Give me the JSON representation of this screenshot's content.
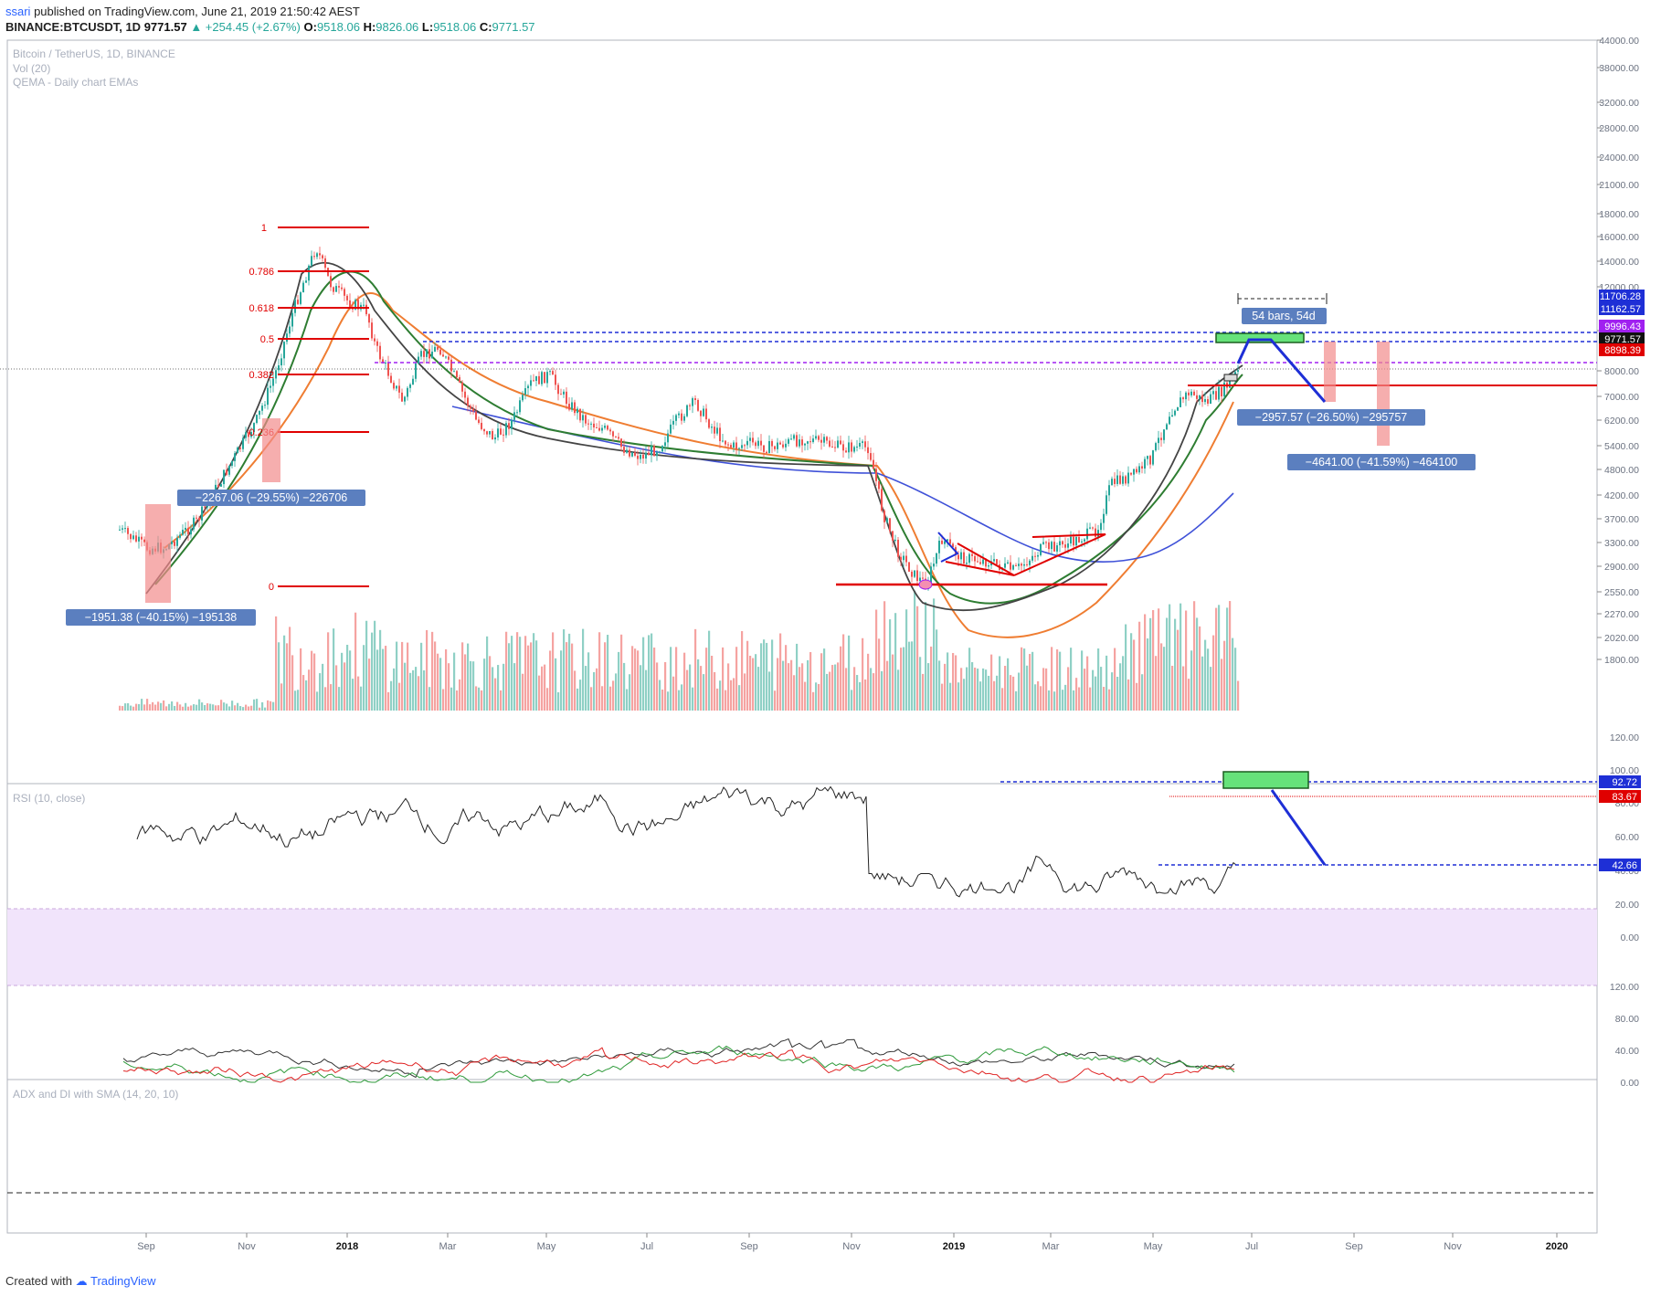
{
  "header": {
    "publisher": "ssari",
    "published_text": "published on TradingView.com, June 21, 2019 21:50:42 AEST",
    "symbol_line": "BINANCE:BTCUSDT, 1D",
    "last": "9771.57",
    "change": "+254.45 (+2.67%)",
    "o_label": "O:",
    "o": "9518.06",
    "h_label": "H:",
    "h": "9826.06",
    "l_label": "L:",
    "l": "9518.06",
    "c_label": "C:",
    "c": "9771.57"
  },
  "legends": {
    "main_title": "Bitcoin / TetherUS, 1D, BINANCE",
    "vol": "Vol (20)",
    "ema": "QEMA - Daily chart EMAs",
    "rsi": "RSI (10, close)",
    "adx": "ADX and DI with SMA (14, 20, 10)"
  },
  "price_axis": [
    "44000.00",
    "38000.00",
    "32000.00",
    "28000.00",
    "24000.00",
    "21000.00",
    "18000.00",
    "16000.00",
    "14000.00",
    "12000.00",
    "10000.00",
    "8000.00",
    "7000.00",
    "6200.00",
    "5400.00",
    "4800.00",
    "4200.00",
    "3700.00",
    "3300.00",
    "2900.00",
    "2550.00",
    "2270.00",
    "2020.00",
    "1800.00"
  ],
  "price_tags": [
    {
      "text": "11706.28",
      "color": "#1e2fd6"
    },
    {
      "text": "11162.57",
      "color": "#1e2fd6"
    },
    {
      "text": "9996.43",
      "color": "#a020f0"
    },
    {
      "text": "9771.57",
      "color": "#111111"
    },
    {
      "text": "8898.39",
      "color": "#e00000"
    }
  ],
  "rsi_axis": [
    "120.00",
    "100.00",
    "80.00",
    "60.00",
    "40.00",
    "20.00",
    "0.00"
  ],
  "rsi_tags": [
    {
      "text": "92.72",
      "color": "#1e2fd6"
    },
    {
      "text": "83.67",
      "color": "#e00000"
    },
    {
      "text": "42.66",
      "color": "#1e2fd6"
    }
  ],
  "adx_axis": [
    "120.00",
    "80.00",
    "40.00",
    "0.00"
  ],
  "x_axis": [
    "Sep",
    "Nov",
    "2018",
    "Mar",
    "May",
    "Jul",
    "Sep",
    "Nov",
    "2019",
    "Mar",
    "May",
    "Jul",
    "Sep",
    "Nov",
    "2020"
  ],
  "fib_levels": [
    "1",
    "0.786",
    "0.618",
    "0.5",
    "0.382",
    "0",
    "0.236"
  ],
  "annotations": {
    "drop1": "−1951.38 (−40.15%) −195138",
    "drop2": "−2267.06 (−29.55%) −226706",
    "drop3": "−2957.57 (−26.50%) −295757",
    "drop4": "−4641.00 (−41.59%) −464100",
    "bars": "54 bars, 54d"
  },
  "footer": {
    "created": "Created with",
    "brand": "TradingView"
  },
  "colors": {
    "up": "#26a69a",
    "down": "#ef5350",
    "ema1": "#333333",
    "ema2": "#2e7d32",
    "ema3": "#ef7d32",
    "ema4": "#3f51d8",
    "rsi_band": "#f1e4fb"
  }
}
